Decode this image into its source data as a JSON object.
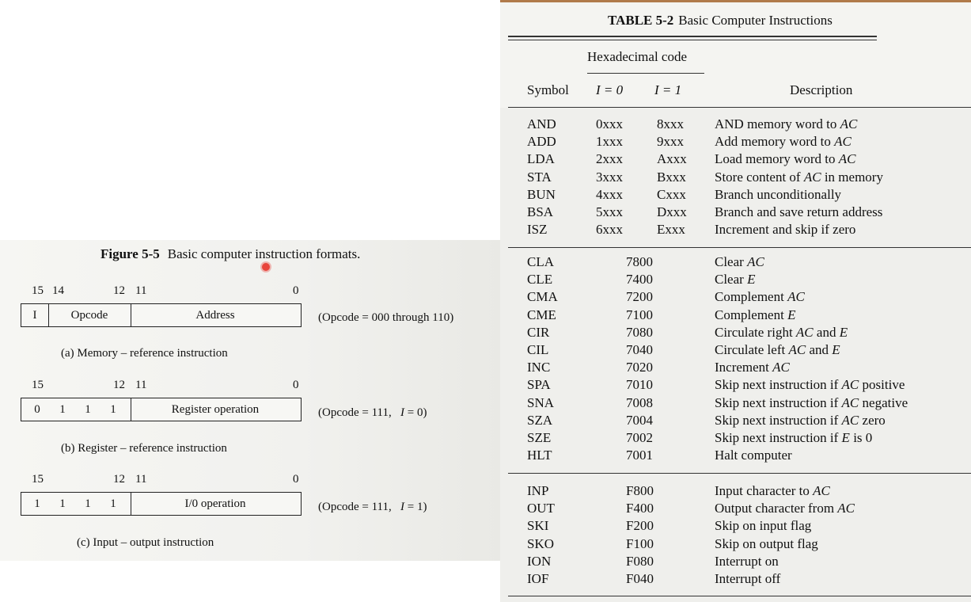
{
  "figure": {
    "label": "Figure 5-5",
    "title": "Basic computer instruction formats.",
    "formats": [
      {
        "bits": {
          "b15": "15",
          "b14": "14",
          "b12": "12",
          "b11": "11",
          "b0": "0"
        },
        "fields": {
          "i": "I",
          "opcode": "Opcode",
          "rest": "Address"
        },
        "note": "(Opcode = 000 through 110)",
        "caption": "(a) Memory – reference instruction"
      },
      {
        "bits": {
          "b15": "15",
          "b12": "12",
          "b11": "11",
          "b0": "0"
        },
        "fields": {
          "d0": "0",
          "d1": "1",
          "d2": "1",
          "d3": "1",
          "rest": "Register operation"
        },
        "note_prefix": "(Opcode = 111,",
        "note_i": "I",
        "note_suffix": "= 0)",
        "caption": "(b) Register – reference instruction"
      },
      {
        "bits": {
          "b15": "15",
          "b12": "12",
          "b11": "11",
          "b0": "0"
        },
        "fields": {
          "d0": "1",
          "d1": "1",
          "d2": "1",
          "d3": "1",
          "rest": "I/0 operation"
        },
        "note_prefix": "(Opcode = 111,",
        "note_i": "I",
        "note_suffix": "= 1)",
        "caption": "(c) Input – output instruction"
      }
    ]
  },
  "table": {
    "label": "TABLE 5-2",
    "title": "Basic Computer Instructions",
    "header": {
      "hex_group": "Hexadecimal code",
      "symbol": "Symbol",
      "i0": "I = 0",
      "i1": "I = 1",
      "description": "Description"
    },
    "memory_rows": [
      {
        "sym": "AND",
        "i0": "0xxx",
        "i1": "8xxx",
        "desc": "AND memory word to AC"
      },
      {
        "sym": "ADD",
        "i0": "1xxx",
        "i1": "9xxx",
        "desc": "Add memory word to AC"
      },
      {
        "sym": "LDA",
        "i0": "2xxx",
        "i1": "Axxx",
        "desc": "Load memory word to AC"
      },
      {
        "sym": "STA",
        "i0": "3xxx",
        "i1": "Bxxx",
        "desc": "Store content of AC in memory"
      },
      {
        "sym": "BUN",
        "i0": "4xxx",
        "i1": "Cxxx",
        "desc": "Branch unconditionally"
      },
      {
        "sym": "BSA",
        "i0": "5xxx",
        "i1": "Dxxx",
        "desc": "Branch and save return address"
      },
      {
        "sym": "ISZ",
        "i0": "6xxx",
        "i1": "Exxx",
        "desc": "Increment and skip if zero"
      }
    ],
    "register_rows": [
      {
        "sym": "CLA",
        "hex": "7800",
        "desc": "Clear AC"
      },
      {
        "sym": "CLE",
        "hex": "7400",
        "desc": "Clear E"
      },
      {
        "sym": "CMA",
        "hex": "7200",
        "desc": "Complement AC"
      },
      {
        "sym": "CME",
        "hex": "7100",
        "desc": "Complement E"
      },
      {
        "sym": "CIR",
        "hex": "7080",
        "desc": "Circulate right AC and E"
      },
      {
        "sym": "CIL",
        "hex": "7040",
        "desc": "Circulate left AC and E"
      },
      {
        "sym": "INC",
        "hex": "7020",
        "desc": "Increment AC"
      },
      {
        "sym": "SPA",
        "hex": "7010",
        "desc": "Skip next instruction if AC positive"
      },
      {
        "sym": "SNA",
        "hex": "7008",
        "desc": "Skip next instruction if AC negative"
      },
      {
        "sym": "SZA",
        "hex": "7004",
        "desc": "Skip next instruction if AC zero"
      },
      {
        "sym": "SZE",
        "hex": "7002",
        "desc": "Skip next instruction if E is 0"
      },
      {
        "sym": "HLT",
        "hex": "7001",
        "desc": "Halt computer"
      }
    ],
    "io_rows": [
      {
        "sym": "INP",
        "hex": "F800",
        "desc": "Input character to AC"
      },
      {
        "sym": "OUT",
        "hex": "F400",
        "desc": "Output character from AC"
      },
      {
        "sym": "SKI",
        "hex": "F200",
        "desc": "Skip on input flag"
      },
      {
        "sym": "SKO",
        "hex": "F100",
        "desc": "Skip on output flag"
      },
      {
        "sym": "ION",
        "hex": "F080",
        "desc": "Interrupt on"
      },
      {
        "sym": "IOF",
        "hex": "F040",
        "desc": "Interrupt off"
      }
    ]
  },
  "colors": {
    "cursor": "#e8453c",
    "top_accent": "#b07a4a"
  }
}
